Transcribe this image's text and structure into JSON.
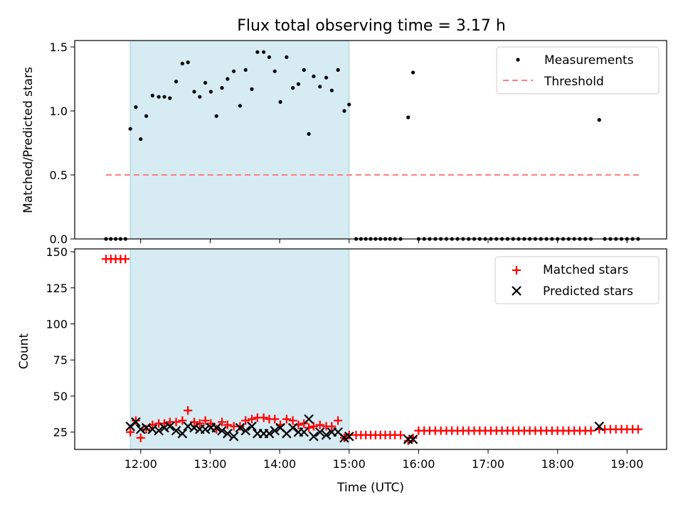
{
  "chart_data": [
    {
      "type": "scatter",
      "title": "Flux total observing time = 3.17 h",
      "xlabel": "",
      "ylabel": "Matched/Predicted stars",
      "xlim": [
        11.05,
        19.57
      ],
      "ylim": [
        0,
        1.55
      ],
      "yticks": [
        0,
        0.5,
        1.0,
        1.5
      ],
      "ytick_labels": [
        "0.0",
        "0.5",
        "1.0",
        "1.5"
      ],
      "xticks": [
        12,
        13,
        14,
        15,
        16,
        17,
        18,
        19
      ],
      "shaded_interval": [
        11.85,
        15.0
      ],
      "legend_position": "upper right",
      "series": [
        {
          "name": "Measurements",
          "marker": "dot",
          "color": "#000000",
          "x": [
            11.5,
            11.57,
            11.64,
            11.71,
            11.78,
            11.85,
            11.93,
            12.0,
            12.08,
            12.17,
            12.26,
            12.34,
            12.42,
            12.51,
            12.6,
            12.68,
            12.77,
            12.85,
            12.93,
            13.01,
            13.09,
            13.17,
            13.25,
            13.34,
            13.43,
            13.51,
            13.6,
            13.68,
            13.77,
            13.85,
            13.93,
            14.01,
            14.1,
            14.19,
            14.27,
            14.35,
            14.42,
            14.49,
            14.58,
            14.67,
            14.75,
            14.84,
            14.93,
            15.0,
            15.1,
            15.17,
            15.24,
            15.31,
            15.38,
            15.45,
            15.52,
            15.59,
            15.66,
            15.74,
            15.85,
            15.92,
            16.0,
            16.08,
            16.16,
            16.24,
            16.32,
            16.4,
            16.48,
            16.56,
            16.64,
            16.72,
            16.8,
            16.88,
            16.96,
            17.04,
            17.12,
            17.2,
            17.28,
            17.36,
            17.44,
            17.52,
            17.6,
            17.68,
            17.76,
            17.84,
            17.92,
            18.0,
            18.08,
            18.16,
            18.24,
            18.32,
            18.4,
            18.48,
            18.6,
            18.68,
            18.76,
            18.84,
            18.92,
            19.0,
            19.08,
            19.16
          ],
          "y": [
            0,
            0,
            0,
            0,
            0,
            0.86,
            1.03,
            0.78,
            0.96,
            1.12,
            1.11,
            1.11,
            1.1,
            1.23,
            1.37,
            1.38,
            1.15,
            1.11,
            1.22,
            1.15,
            0.96,
            1.18,
            1.25,
            1.31,
            1.04,
            1.32,
            1.17,
            1.46,
            1.46,
            1.42,
            1.31,
            1.07,
            1.42,
            1.18,
            1.21,
            1.32,
            0.82,
            1.27,
            1.19,
            1.26,
            1.16,
            1.32,
            1.0,
            1.05,
            0,
            0,
            0,
            0,
            0,
            0,
            0,
            0,
            0,
            0,
            0.95,
            1.3,
            0,
            0,
            0,
            0,
            0,
            0,
            0,
            0,
            0,
            0,
            0,
            0,
            0,
            0,
            0,
            0,
            0,
            0,
            0,
            0,
            0,
            0,
            0,
            0,
            0,
            0,
            0,
            0,
            0,
            0,
            0,
            0,
            0.93,
            0,
            0,
            0,
            0,
            0,
            0,
            0
          ]
        },
        {
          "name": "Threshold",
          "marker": "dashed-line",
          "color": "#ff7f7f",
          "x": [
            11.5,
            19.2
          ],
          "y": [
            0.5,
            0.5
          ]
        }
      ]
    },
    {
      "type": "scatter",
      "title": "",
      "xlabel": "Time (UTC)",
      "ylabel": "Count",
      "xlim": [
        11.05,
        19.57
      ],
      "ylim": [
        13,
        152
      ],
      "yticks": [
        25,
        50,
        75,
        100,
        125,
        150
      ],
      "ytick_labels": [
        "25",
        "50",
        "75",
        "100",
        "125",
        "150"
      ],
      "xticks": [
        12,
        13,
        14,
        15,
        16,
        17,
        18,
        19
      ],
      "xtick_labels": [
        "12:00",
        "13:00",
        "14:00",
        "15:00",
        "16:00",
        "17:00",
        "18:00",
        "19:00"
      ],
      "shaded_interval": [
        11.85,
        15.0
      ],
      "legend_position": "upper right",
      "series": [
        {
          "name": "Matched stars",
          "marker": "plus",
          "color": "#ff0000",
          "x": [
            11.5,
            11.57,
            11.64,
            11.71,
            11.78,
            11.85,
            11.93,
            12.0,
            12.08,
            12.17,
            12.26,
            12.34,
            12.42,
            12.51,
            12.6,
            12.68,
            12.77,
            12.85,
            12.93,
            13.01,
            13.09,
            13.17,
            13.25,
            13.34,
            13.43,
            13.51,
            13.6,
            13.68,
            13.77,
            13.85,
            13.93,
            14.01,
            14.1,
            14.19,
            14.27,
            14.35,
            14.42,
            14.49,
            14.58,
            14.67,
            14.75,
            14.84,
            14.93,
            15.0,
            15.1,
            15.17,
            15.24,
            15.31,
            15.38,
            15.45,
            15.52,
            15.59,
            15.66,
            15.74,
            15.85,
            15.92,
            16.0,
            16.08,
            16.16,
            16.24,
            16.32,
            16.4,
            16.48,
            16.56,
            16.64,
            16.72,
            16.8,
            16.88,
            16.96,
            17.04,
            17.12,
            17.2,
            17.28,
            17.36,
            17.44,
            17.52,
            17.6,
            17.68,
            17.76,
            17.84,
            17.92,
            18.0,
            18.08,
            18.16,
            18.24,
            18.32,
            18.4,
            18.48,
            18.6,
            18.68,
            18.76,
            18.84,
            18.92,
            19.0,
            19.08,
            19.16
          ],
          "y": [
            145,
            145,
            145,
            145,
            145,
            25,
            33,
            21,
            27,
            30,
            31,
            31,
            32,
            32,
            33,
            40,
            32,
            31,
            33,
            31,
            27,
            32,
            30,
            29,
            29,
            33,
            34,
            35,
            35,
            34,
            34,
            30,
            34,
            33,
            30,
            31,
            28,
            29,
            30,
            29,
            29,
            33,
            21,
            23,
            23,
            23,
            23,
            23,
            23,
            23,
            23,
            23,
            23,
            23,
            19,
            21,
            26,
            26,
            26,
            26,
            26,
            26,
            26,
            26,
            26,
            26,
            26,
            26,
            26,
            26,
            26,
            26,
            26,
            26,
            26,
            26,
            26,
            26,
            26,
            26,
            26,
            26,
            26,
            26,
            26,
            26,
            26,
            26,
            27,
            27,
            27,
            27,
            27,
            27,
            27,
            27
          ]
        },
        {
          "name": "Predicted stars",
          "marker": "x",
          "color": "#000000",
          "x": [
            11.85,
            11.93,
            12.0,
            12.08,
            12.17,
            12.26,
            12.34,
            12.42,
            12.51,
            12.6,
            12.68,
            12.77,
            12.85,
            12.93,
            13.01,
            13.09,
            13.17,
            13.25,
            13.34,
            13.43,
            13.51,
            13.6,
            13.68,
            13.77,
            13.85,
            13.93,
            14.01,
            14.1,
            14.19,
            14.27,
            14.35,
            14.42,
            14.49,
            14.58,
            14.67,
            14.75,
            14.84,
            14.93,
            15.0,
            15.85,
            15.92,
            18.6
          ],
          "y": [
            29,
            32,
            27,
            28,
            27,
            26,
            28,
            29,
            26,
            24,
            29,
            28,
            27,
            27,
            28,
            28,
            26,
            24,
            22,
            28,
            26,
            29,
            24,
            24,
            24,
            26,
            28,
            24,
            28,
            25,
            25,
            34,
            22,
            25,
            23,
            25,
            25,
            21,
            22,
            20,
            20,
            29
          ]
        }
      ]
    }
  ]
}
